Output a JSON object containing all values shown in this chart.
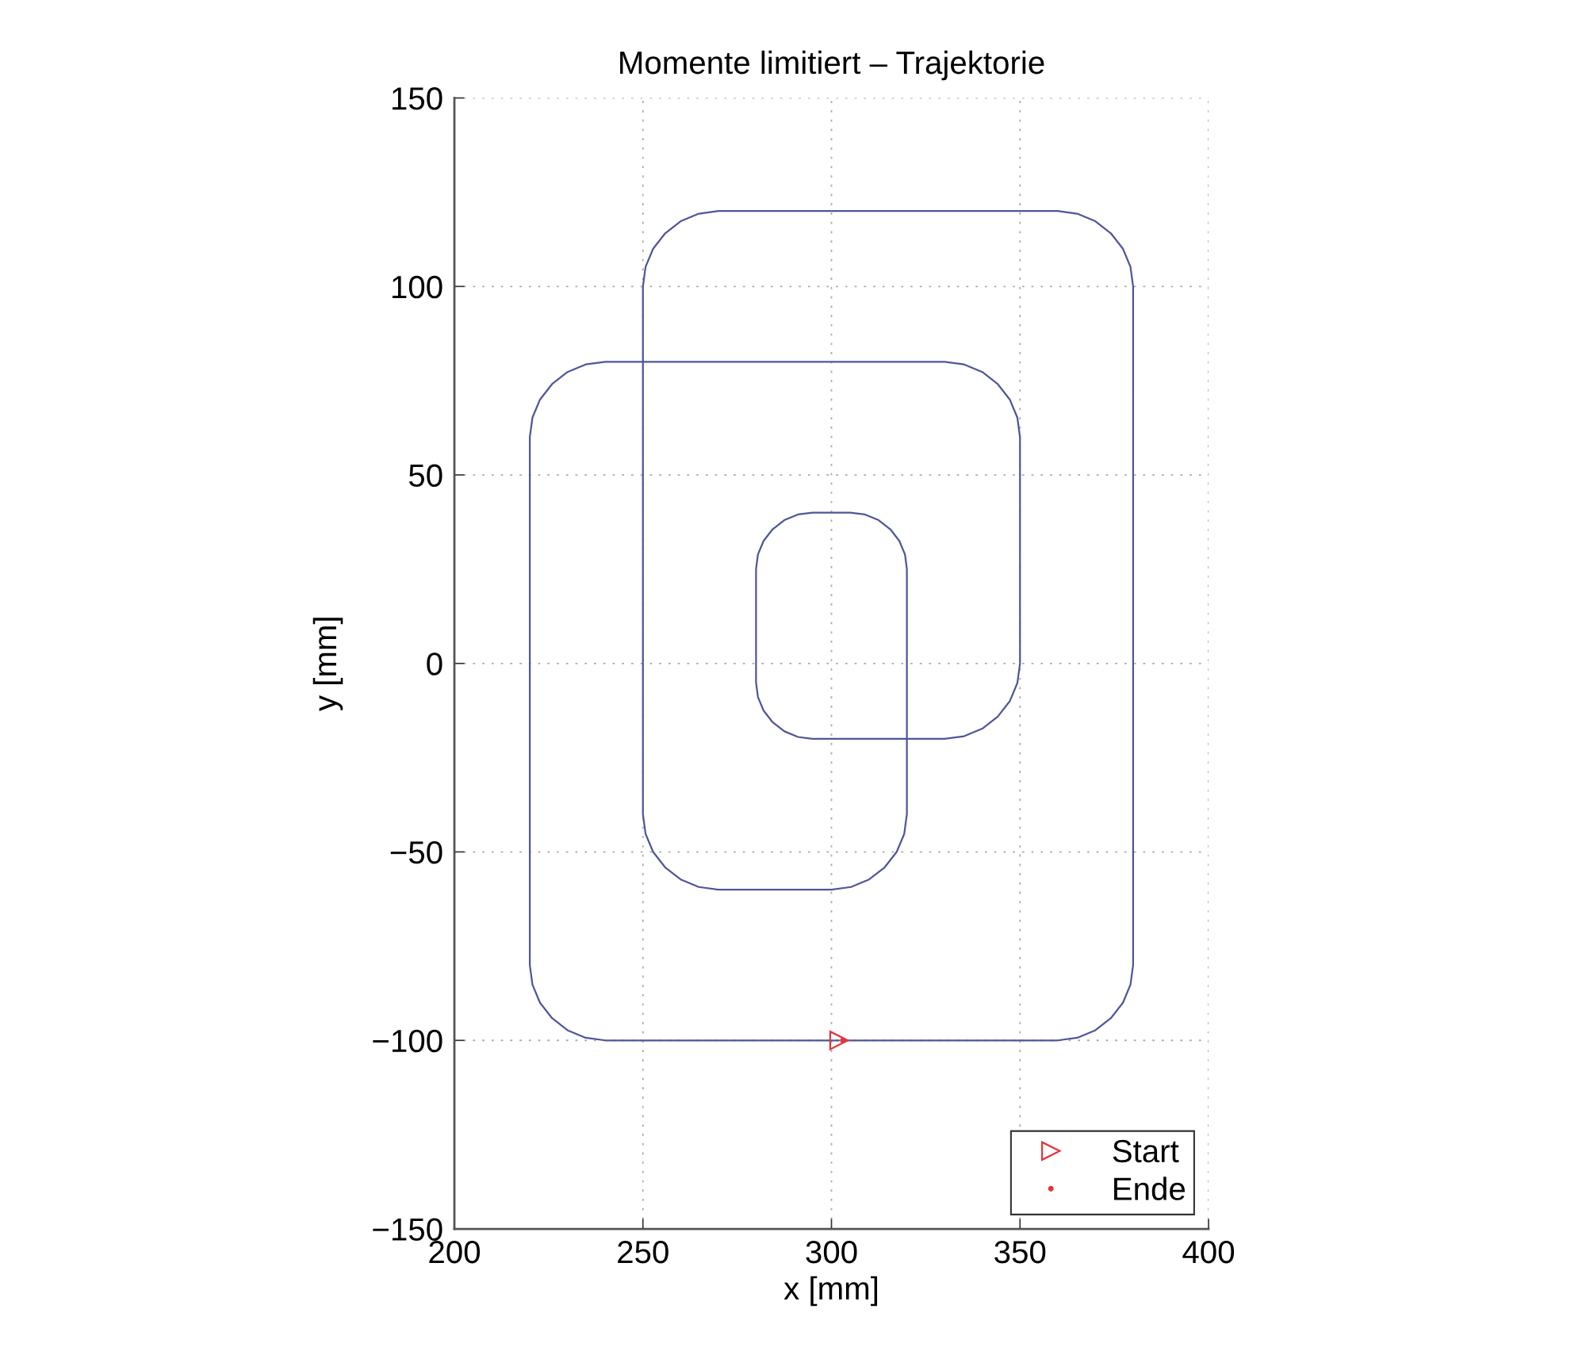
{
  "chart_data": {
    "type": "line",
    "title": "Momente limitiert – Trajektorie",
    "xlabel": "x [mm]",
    "ylabel": "y [mm]",
    "xlim": [
      200,
      400
    ],
    "ylim": [
      -150,
      150
    ],
    "xticks": [
      200,
      250,
      300,
      350,
      400
    ],
    "yticks": [
      {
        "value": -150,
        "label": "−150"
      },
      {
        "value": -100,
        "label": "−100"
      },
      {
        "value": -50,
        "label": "−50"
      },
      0,
      50,
      100,
      150
    ],
    "grid": true,
    "legend": "bottom right",
    "line_style": "solid",
    "series": [
      {
        "color": "#50559a",
        "x": [
          302,
          240,
          234.8,
          230,
          225.9,
          222.7,
          220.7,
          220,
          220,
          220.7,
          222.7,
          225.9,
          230,
          234.8,
          240,
          330,
          335.2,
          340,
          344.1,
          347.3,
          349.3,
          350,
          350,
          349.3,
          347.3,
          344.1,
          340,
          335.2,
          330,
          295,
          291.1,
          287.5,
          284.4,
          282,
          280.5,
          280,
          280,
          280.5,
          282,
          284.4,
          287.5,
          291.1,
          295,
          305,
          308.9,
          312.5,
          315.6,
          318,
          319.5,
          320,
          320,
          319.3,
          317.3,
          314.1,
          310,
          305.2,
          300,
          270,
          264.8,
          260,
          255.9,
          252.7,
          250.7,
          250,
          250,
          250.7,
          252.7,
          255.9,
          260,
          264.8,
          270,
          360,
          365.2,
          370,
          374.1,
          377.3,
          379.3,
          380,
          380,
          379.3,
          377.3,
          374.1,
          370,
          365.2,
          360,
          303
        ],
        "values": [
          -100,
          -100,
          -99.3,
          -97.3,
          -94.1,
          -90,
          -85.2,
          -80,
          60,
          65.2,
          70,
          74.1,
          77.3,
          79.3,
          80,
          80,
          79.3,
          77.3,
          74.1,
          70,
          65.2,
          60,
          0,
          -5.2,
          -10,
          -14.1,
          -17.3,
          -19.3,
          -20,
          -20,
          -19.5,
          -18,
          -15.6,
          -12.5,
          -8.9,
          -5,
          25,
          28.9,
          32.5,
          35.6,
          38,
          39.5,
          40,
          40,
          39.5,
          38,
          35.6,
          32.5,
          28.9,
          25,
          -40,
          -45.2,
          -50,
          -54.1,
          -57.3,
          -59.3,
          -60,
          -60,
          -59.3,
          -57.3,
          -54.1,
          -50,
          -45.2,
          -40,
          100,
          105.2,
          110,
          114.1,
          117.3,
          119.3,
          120,
          120,
          119.3,
          117.3,
          114.1,
          110,
          105.2,
          100,
          -80,
          -85.2,
          -90,
          -94.1,
          -97.3,
          -99.3,
          -100,
          -100
        ]
      },
      {
        "type": "scatter",
        "name": "Start",
        "color": "#e0383c",
        "marker": "triangle",
        "x": [
          302
        ],
        "values": [
          -100
        ]
      },
      {
        "type": "scatter",
        "name": "Ende",
        "color": "#e0383c",
        "marker": "circle",
        "x": [
          303
        ],
        "values": [
          -100
        ]
      }
    ]
  }
}
